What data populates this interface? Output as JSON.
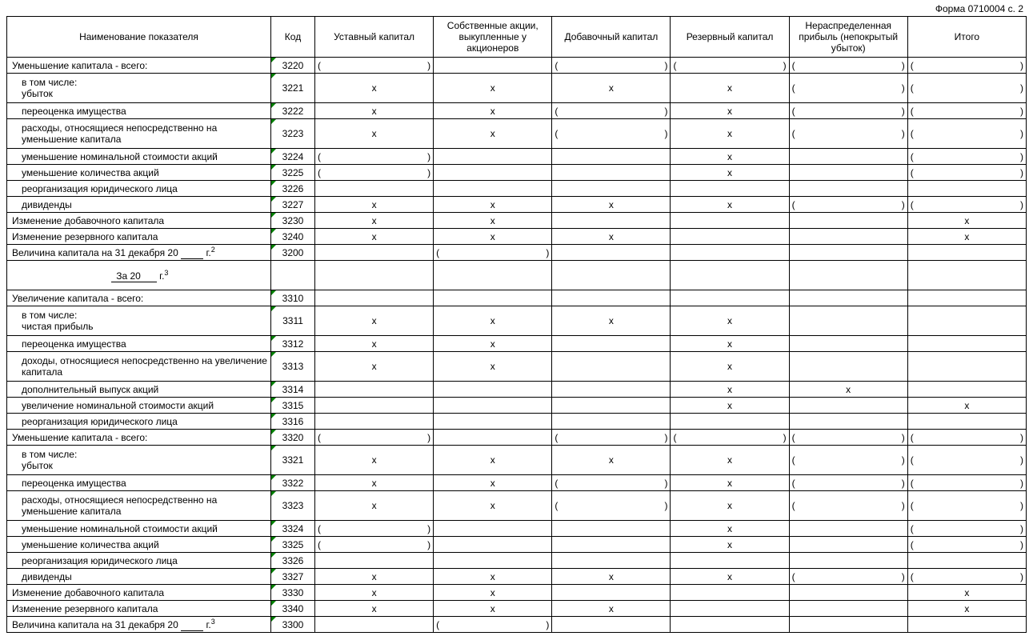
{
  "form_label": "Форма 0710004 с. 2",
  "headers": {
    "name": "Наименование показателя",
    "code": "Код",
    "c1": "Уставный капитал",
    "c2": "Собственные акции, выкупленные у акционеров",
    "c3": "Добавочный капитал",
    "c4": "Резервный капитал",
    "c5": "Нераспределенная прибыль (непокрытый убыток)",
    "c6": "Итого"
  },
  "section_year_prefix": "За 20",
  "section_year_suffix": "г.",
  "balance_line_prefix": "Величина капитала на 31 декабря 20",
  "balance_line_suffix": "г.",
  "rows": [
    {
      "id": "3220",
      "name": "Уменьшение капитала - всего:",
      "code": "3220",
      "indent": 0,
      "cells": [
        "paren",
        "blank",
        "paren",
        "paren",
        "paren",
        "paren"
      ]
    },
    {
      "id": "3221",
      "name": "в том числе:\nубыток",
      "code": "3221",
      "indent": 1,
      "tall": true,
      "cells": [
        "x",
        "x",
        "x",
        "x",
        "paren",
        "paren"
      ]
    },
    {
      "id": "3222",
      "name": "переоценка имущества",
      "code": "3222",
      "indent": 1,
      "cells": [
        "x",
        "x",
        "paren",
        "x",
        "paren",
        "paren"
      ]
    },
    {
      "id": "3223",
      "name": "расходы, относящиеся непосредственно на уменьшение капитала",
      "code": "3223",
      "indent": 1,
      "tall": true,
      "cells": [
        "x",
        "x",
        "paren",
        "x",
        "paren",
        "paren"
      ]
    },
    {
      "id": "3224",
      "name": "уменьшение номинальной стоимости акций",
      "code": "3224",
      "indent": 1,
      "cells": [
        "paren",
        "blank",
        "blank",
        "x",
        "blank",
        "paren"
      ]
    },
    {
      "id": "3225",
      "name": "уменьшение количества акций",
      "code": "3225",
      "indent": 1,
      "cells": [
        "paren",
        "blank",
        "blank",
        "x",
        "blank",
        "paren"
      ]
    },
    {
      "id": "3226",
      "name": "реорганизация юридического лица",
      "code": "3226",
      "indent": 1,
      "cells": [
        "blank",
        "blank",
        "blank",
        "blank",
        "blank",
        "blank"
      ]
    },
    {
      "id": "3227",
      "name": "дивиденды",
      "code": "3227",
      "indent": 1,
      "cells": [
        "x",
        "x",
        "x",
        "x",
        "paren",
        "paren"
      ]
    },
    {
      "id": "3230",
      "name": "Изменение добавочного капитала",
      "code": "3230",
      "indent": 0,
      "cells": [
        "x",
        "x",
        "blank",
        "blank",
        "blank",
        "x"
      ]
    },
    {
      "id": "3240",
      "name": "Изменение резервного капитала",
      "code": "3240",
      "indent": 0,
      "cells": [
        "x",
        "x",
        "x",
        "blank",
        "blank",
        "x"
      ]
    },
    {
      "id": "3200",
      "name": "Величина капитала на 31 декабря 20 ___ г.²",
      "code": "3200",
      "indent": 0,
      "balance": true,
      "sup": "2",
      "cells": [
        "blank",
        "paren",
        "blank",
        "blank",
        "blank",
        "blank"
      ]
    },
    {
      "id": "sec2",
      "section": true,
      "sup": "3"
    },
    {
      "id": "3310",
      "name": "Увеличение капитала - всего:",
      "code": "3310",
      "indent": 0,
      "cells": [
        "blank",
        "blank",
        "blank",
        "blank",
        "blank",
        "blank"
      ]
    },
    {
      "id": "3311",
      "name": "в том числе:\nчистая прибыль",
      "code": "3311",
      "indent": 1,
      "tall": true,
      "cells": [
        "x",
        "x",
        "x",
        "x",
        "blank",
        "blank"
      ]
    },
    {
      "id": "3312",
      "name": "переоценка имущества",
      "code": "3312",
      "indent": 1,
      "cells": [
        "x",
        "x",
        "blank",
        "x",
        "blank",
        "blank"
      ]
    },
    {
      "id": "3313",
      "name": "доходы, относящиеся непосредственно на увеличение капитала",
      "code": "3313",
      "indent": 1,
      "tall": true,
      "cells": [
        "x",
        "x",
        "blank",
        "x",
        "blank",
        "blank"
      ]
    },
    {
      "id": "3314",
      "name": "дополнительный выпуск акций",
      "code": "3314",
      "indent": 1,
      "cells": [
        "blank",
        "blank",
        "blank",
        "x",
        "x",
        "blank"
      ]
    },
    {
      "id": "3315",
      "name": "увеличение номинальной стоимости акций",
      "code": "3315",
      "indent": 1,
      "cells": [
        "blank",
        "blank",
        "blank",
        "x",
        "blank",
        "x"
      ]
    },
    {
      "id": "3316",
      "name": "реорганизация юридического лица",
      "code": "3316",
      "indent": 1,
      "cells": [
        "blank",
        "blank",
        "blank",
        "blank",
        "blank",
        "blank"
      ]
    },
    {
      "id": "3320",
      "name": "Уменьшение капитала - всего:",
      "code": "3320",
      "indent": 0,
      "cells": [
        "paren",
        "blank",
        "paren",
        "paren",
        "paren",
        "paren"
      ]
    },
    {
      "id": "3321",
      "name": "в том числе:\nубыток",
      "code": "3321",
      "indent": 1,
      "tall": true,
      "cells": [
        "x",
        "x",
        "x",
        "x",
        "paren",
        "paren"
      ]
    },
    {
      "id": "3322",
      "name": "переоценка имущества",
      "code": "3322",
      "indent": 1,
      "cells": [
        "x",
        "x",
        "paren",
        "x",
        "paren",
        "paren"
      ]
    },
    {
      "id": "3323",
      "name": "расходы, относящиеся непосредственно на уменьшение капитала",
      "code": "3323",
      "indent": 1,
      "tall": true,
      "cells": [
        "x",
        "x",
        "paren",
        "x",
        "paren",
        "paren"
      ]
    },
    {
      "id": "3324",
      "name": "уменьшение номинальной стоимости акций",
      "code": "3324",
      "indent": 1,
      "cells": [
        "paren",
        "blank",
        "blank",
        "x",
        "blank",
        "paren"
      ]
    },
    {
      "id": "3325",
      "name": "уменьшение количества акций",
      "code": "3325",
      "indent": 1,
      "cells": [
        "paren",
        "blank",
        "blank",
        "x",
        "blank",
        "paren"
      ]
    },
    {
      "id": "3326",
      "name": "реорганизация юридического лица",
      "code": "3326",
      "indent": 1,
      "cells": [
        "blank",
        "blank",
        "blank",
        "blank",
        "blank",
        "blank"
      ]
    },
    {
      "id": "3327",
      "name": "дивиденды",
      "code": "3327",
      "indent": 1,
      "cells": [
        "x",
        "x",
        "x",
        "x",
        "paren",
        "paren"
      ]
    },
    {
      "id": "3330",
      "name": "Изменение добавочного капитала",
      "code": "3330",
      "indent": 0,
      "cells": [
        "x",
        "x",
        "blank",
        "blank",
        "blank",
        "x"
      ]
    },
    {
      "id": "3340",
      "name": "Изменение резервного капитала",
      "code": "3340",
      "indent": 0,
      "cells": [
        "x",
        "x",
        "x",
        "blank",
        "blank",
        "x"
      ]
    },
    {
      "id": "3300",
      "name": "Величина капитала на 31 декабря 20 ___ г.³",
      "code": "3300",
      "indent": 0,
      "balance": true,
      "sup": "3",
      "cells": [
        "blank",
        "paren",
        "blank",
        "blank",
        "blank",
        "blank"
      ]
    }
  ]
}
